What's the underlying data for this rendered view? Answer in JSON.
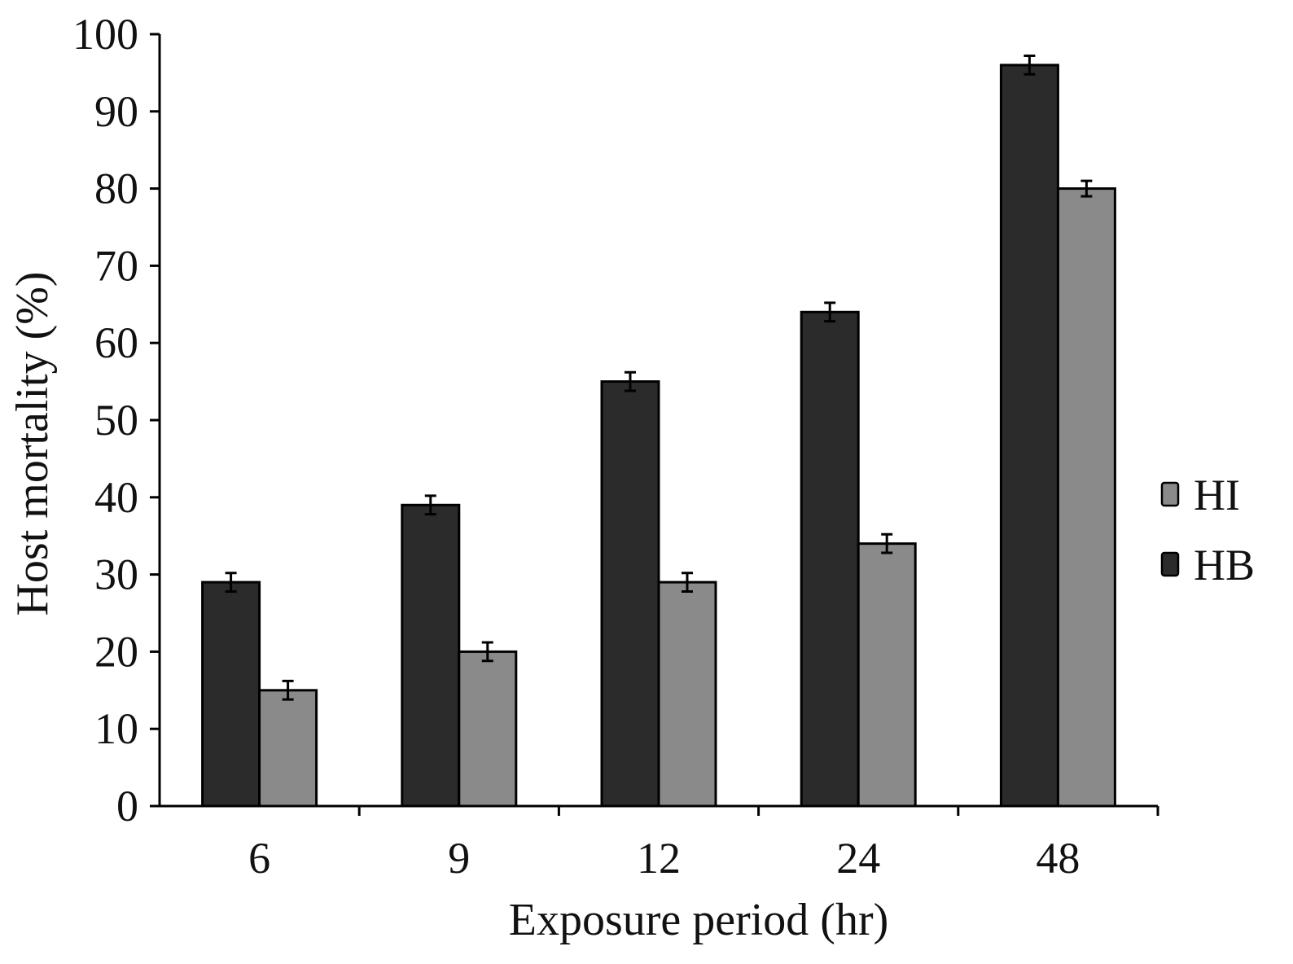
{
  "chart_data": {
    "type": "bar",
    "title": "",
    "xlabel": "Exposure period (hr)",
    "ylabel": "Host mortality (%)",
    "categories": [
      "6",
      "9",
      "12",
      "24",
      "48"
    ],
    "ylim": [
      0,
      100
    ],
    "yticks": [
      0,
      10,
      20,
      30,
      40,
      50,
      60,
      70,
      80,
      90,
      100
    ],
    "grid": false,
    "legend_position": "right",
    "series": [
      {
        "name": "HB",
        "color": "#2b2b2b",
        "values": [
          29,
          39,
          55,
          64,
          96
        ],
        "errors": [
          1.2,
          1.2,
          1.2,
          1.2,
          1.2
        ]
      },
      {
        "name": "HI",
        "color": "#8a8a8a",
        "values": [
          15,
          20,
          29,
          34,
          80
        ],
        "errors": [
          1.2,
          1.2,
          1.2,
          1.2,
          1.0
        ]
      }
    ],
    "legend_order": [
      "HI",
      "HB"
    ]
  }
}
